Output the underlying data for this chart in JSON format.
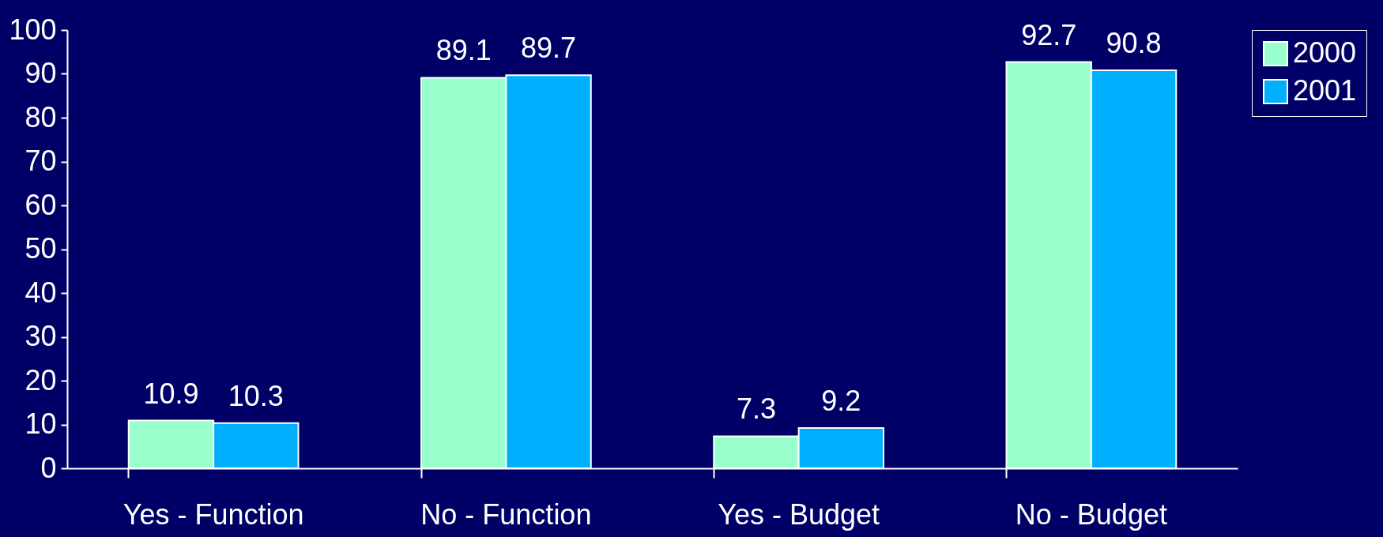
{
  "chart_data": {
    "type": "bar",
    "categories": [
      "Yes - Function",
      "No - Function",
      "Yes - Budget",
      "No - Budget"
    ],
    "series": [
      {
        "name": "2000",
        "color": "#99ffcc",
        "values": [
          10.9,
          89.1,
          7.3,
          92.7
        ]
      },
      {
        "name": "2001",
        "color": "#00b0ff",
        "values": [
          10.3,
          89.7,
          9.2,
          90.8
        ]
      }
    ],
    "ylim": [
      0,
      100
    ],
    "yticks": [
      0,
      10,
      20,
      30,
      40,
      50,
      60,
      70,
      80,
      90,
      100
    ],
    "grid": false,
    "legend": "right",
    "data_labels": true
  }
}
